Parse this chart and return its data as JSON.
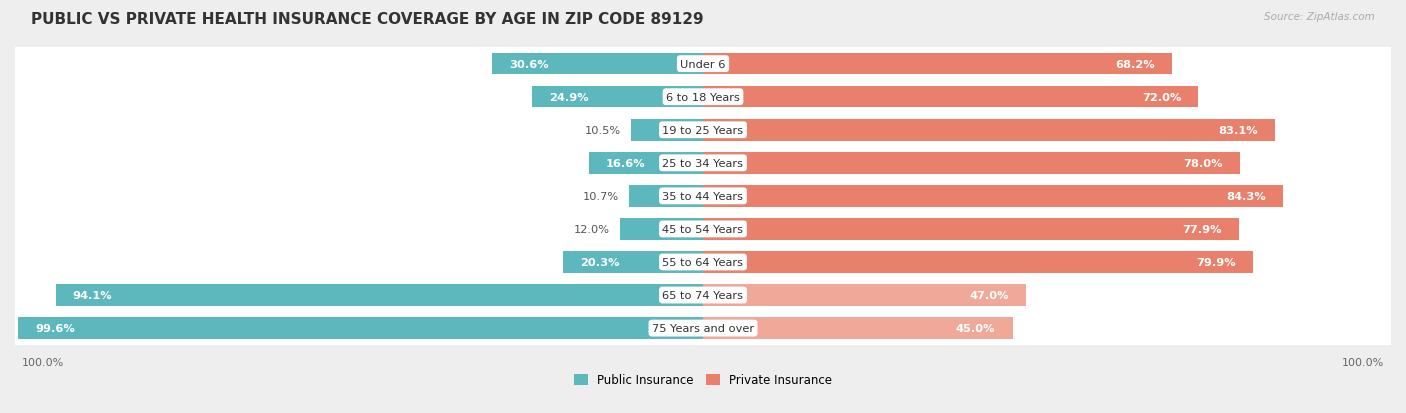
{
  "title": "PUBLIC VS PRIVATE HEALTH INSURANCE COVERAGE BY AGE IN ZIP CODE 89129",
  "source": "Source: ZipAtlas.com",
  "categories": [
    "Under 6",
    "6 to 18 Years",
    "19 to 25 Years",
    "25 to 34 Years",
    "35 to 44 Years",
    "45 to 54 Years",
    "55 to 64 Years",
    "65 to 74 Years",
    "75 Years and over"
  ],
  "public_values": [
    30.6,
    24.9,
    10.5,
    16.6,
    10.7,
    12.0,
    20.3,
    94.1,
    99.6
  ],
  "private_values": [
    68.2,
    72.0,
    83.1,
    78.0,
    84.3,
    77.9,
    79.9,
    47.0,
    45.0
  ],
  "public_color": "#5cb8bc",
  "private_color_normal": "#e8806b",
  "private_color_light": "#f0a898",
  "high_public_rows": [
    7,
    8
  ],
  "bg_color": "#eeeeee",
  "row_bg_color": "#f7f7f7",
  "title_fontsize": 11,
  "label_fontsize": 8.2,
  "axis_label_fontsize": 8,
  "max_val": 100.0,
  "x_left_label": "100.0%",
  "x_right_label": "100.0%"
}
